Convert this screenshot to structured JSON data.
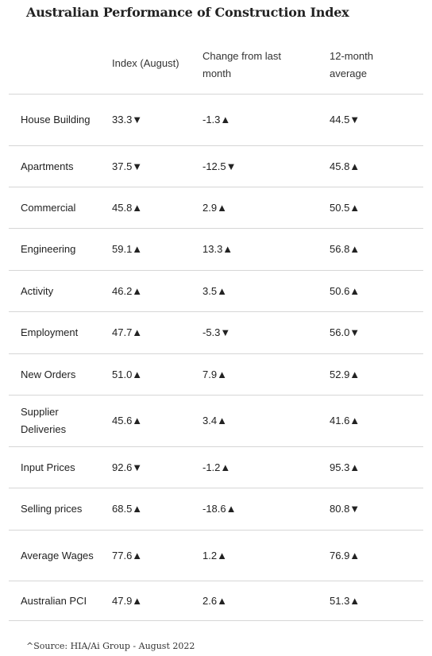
{
  "title": "Australian Performance of Construction Index",
  "headers": {
    "index": "Index (August)",
    "change": "Change from last month",
    "avg": "12-month average"
  },
  "rows": [
    {
      "label": "House Building",
      "index": "33.3▼",
      "change": "-1.3▲",
      "avg": "44.5▼"
    },
    {
      "label": "Apartments",
      "index": "37.5▼",
      "change": "-12.5▼",
      "avg": "45.8▲"
    },
    {
      "label": "Commercial",
      "index": "45.8▲",
      "change": "2.9▲",
      "avg": "50.5▲"
    },
    {
      "label": "Engineering",
      "index": "59.1▲",
      "change": "13.3▲",
      "avg": "56.8▲"
    },
    {
      "label": "Activity",
      "index": "46.2▲",
      "change": "3.5▲",
      "avg": "50.6▲"
    },
    {
      "label": "Employment",
      "index": "47.7▲",
      "change": "-5.3▼",
      "avg": "56.0▼"
    },
    {
      "label": "New Orders",
      "index": "51.0▲",
      "change": "7.9▲",
      "avg": "52.9▲"
    },
    {
      "label": "Supplier Deliveries",
      "index": "45.6▲",
      "change": "3.4▲",
      "avg": "41.6▲"
    },
    {
      "label": "Input Prices",
      "index": "92.6▼",
      "change": "-1.2▲",
      "avg": "95.3▲"
    },
    {
      "label": "Selling prices",
      "index": "68.5▲",
      "change": "-18.6▲",
      "avg": "80.8▼"
    },
    {
      "label": "Average Wages",
      "index": "77.6▲",
      "change": "1.2▲",
      "avg": "76.9▲"
    },
    {
      "label": "Australian PCI",
      "index": "47.9▲",
      "change": "2.6▲",
      "avg": "51.3▲"
    }
  ],
  "source": "^Source: HIA/Ai Group - August 2022"
}
